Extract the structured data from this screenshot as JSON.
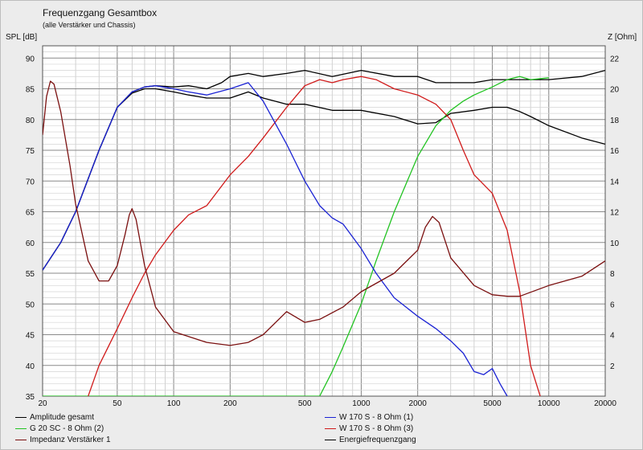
{
  "chart_data": {
    "type": "line",
    "title": "Frequenzgang Gesamtbox",
    "subtitle": "(alle Verstärker und Chassis)",
    "ylabel_left": "SPL [dB]",
    "ylabel_right": "Z [Ohm]",
    "xscale": "log",
    "xlim": [
      20,
      20000
    ],
    "ylim_left": [
      35,
      92
    ],
    "ylim_right": [
      0,
      22.8
    ],
    "x_tick_labels": [
      "20",
      "50",
      "100",
      "200",
      "500",
      "1000",
      "2000",
      "5000",
      "10000",
      "20000"
    ],
    "x_tick_values": [
      20,
      50,
      100,
      200,
      500,
      1000,
      2000,
      5000,
      10000,
      20000
    ],
    "y_left_tick_labels": [
      "35",
      "40",
      "45",
      "50",
      "55",
      "60",
      "65",
      "70",
      "75",
      "80",
      "85",
      "90"
    ],
    "y_left_tick_values": [
      35,
      40,
      45,
      50,
      55,
      60,
      65,
      70,
      75,
      80,
      85,
      90
    ],
    "y_right_tick_labels": [
      "2",
      "4",
      "6",
      "8",
      "10",
      "12",
      "14",
      "16",
      "18",
      "20",
      "22"
    ],
    "y_right_tick_values": [
      2,
      4,
      6,
      8,
      10,
      12,
      14,
      16,
      18,
      20,
      22
    ],
    "grid": true,
    "legend_position": "bottom",
    "series": [
      {
        "name": "Amplitude gesamt",
        "color": "#000000",
        "axis": "left",
        "x": [
          20,
          25,
          30,
          40,
          50,
          60,
          70,
          80,
          100,
          120,
          150,
          180,
          200,
          250,
          300,
          400,
          500,
          700,
          1000,
          1500,
          2000,
          2500,
          3000,
          4000,
          5000,
          6000,
          7000,
          8000,
          10000,
          15000,
          20000
        ],
        "y": [
          55.5,
          60,
          65,
          75,
          82,
          84.5,
          85.3,
          85.5,
          85.3,
          85.5,
          85,
          86,
          87,
          87.5,
          87,
          87.5,
          88,
          87,
          88,
          87,
          87,
          86,
          86,
          86,
          86.5,
          86.5,
          86.5,
          86.5,
          86.5,
          87,
          88
        ]
      },
      {
        "name": "W 170 S - 8 Ohm (1)",
        "color": "#1a22d4",
        "axis": "left",
        "x": [
          20,
          25,
          30,
          40,
          50,
          60,
          70,
          80,
          100,
          120,
          150,
          200,
          250,
          300,
          400,
          500,
          600,
          700,
          800,
          1000,
          1200,
          1500,
          2000,
          2500,
          3000,
          3500,
          4000,
          4500,
          5000,
          5500,
          6000
        ],
        "y": [
          55.5,
          60,
          65,
          75,
          82,
          84.5,
          85.3,
          85.5,
          85,
          84.5,
          84,
          85,
          86,
          83,
          76,
          70,
          66,
          64,
          63,
          59,
          55,
          51,
          48,
          46,
          44,
          42,
          39,
          38.5,
          39.5,
          37,
          35
        ]
      },
      {
        "name": "G 20 SC - 8 Ohm (2)",
        "color": "#22c322",
        "axis": "left",
        "x": [
          20,
          300,
          600,
          700,
          800,
          1000,
          1200,
          1500,
          2000,
          2500,
          3000,
          3500,
          4000,
          5000,
          6000,
          7000,
          8000,
          10000
        ],
        "y": [
          35,
          35,
          35,
          39,
          43,
          50,
          57,
          65,
          74,
          79,
          81.5,
          83,
          84,
          85.3,
          86.5,
          87,
          86.5,
          86.8
        ]
      },
      {
        "name": "W 170 S - 8 Ohm (3)",
        "color": "#d01a1a",
        "axis": "left",
        "x": [
          35,
          40,
          50,
          60,
          70,
          80,
          100,
          120,
          150,
          200,
          250,
          300,
          400,
          500,
          600,
          700,
          800,
          1000,
          1200,
          1500,
          2000,
          2500,
          3000,
          3500,
          4000,
          5000,
          6000,
          7000,
          8000,
          9000
        ],
        "y": [
          35,
          40,
          46,
          51,
          55,
          58,
          62,
          64.5,
          66,
          71,
          74,
          77,
          82,
          85.5,
          86.5,
          86,
          86.5,
          87,
          86.5,
          85,
          84,
          82.5,
          80,
          75,
          71,
          68,
          62,
          52,
          40,
          35
        ]
      },
      {
        "name": "Impedanz Verstärker 1",
        "color": "#7a0f0f",
        "axis": "right",
        "x": [
          20,
          21,
          22,
          23,
          25,
          28,
          30,
          35,
          40,
          45,
          50,
          55,
          58,
          60,
          63,
          70,
          80,
          100,
          150,
          200,
          250,
          300,
          400,
          500,
          600,
          800,
          1000,
          1500,
          2000,
          2200,
          2400,
          2600,
          3000,
          4000,
          5000,
          6000,
          7000,
          10000,
          15000,
          20000
        ],
        "y": [
          17,
          19.5,
          20.5,
          20.3,
          18.5,
          15,
          12.5,
          8.8,
          7.5,
          7.5,
          8.5,
          10.5,
          11.8,
          12.2,
          11.5,
          8.5,
          5.8,
          4.2,
          3.5,
          3.3,
          3.5,
          4,
          5.5,
          4.8,
          5,
          5.8,
          6.8,
          8,
          9.5,
          11,
          11.7,
          11.3,
          9,
          7.2,
          6.6,
          6.5,
          6.5,
          7.2,
          7.8,
          8.8
        ]
      },
      {
        "name": "Energiefrequenzgang",
        "color": "#000000",
        "axis": "left",
        "x": [
          20,
          25,
          30,
          40,
          50,
          60,
          70,
          80,
          100,
          120,
          150,
          200,
          250,
          300,
          400,
          500,
          700,
          1000,
          1500,
          2000,
          2500,
          3000,
          4000,
          5000,
          6000,
          7000,
          8000,
          10000,
          15000,
          20000
        ],
        "y": [
          55.5,
          60,
          65,
          75,
          82,
          84.3,
          85,
          85,
          84.5,
          84,
          83.5,
          83.5,
          84.5,
          83.5,
          82.5,
          82.5,
          81.5,
          81.5,
          80.5,
          79.3,
          79.5,
          81,
          81.5,
          82,
          82,
          81.3,
          80.5,
          79,
          77,
          76
        ]
      }
    ]
  }
}
